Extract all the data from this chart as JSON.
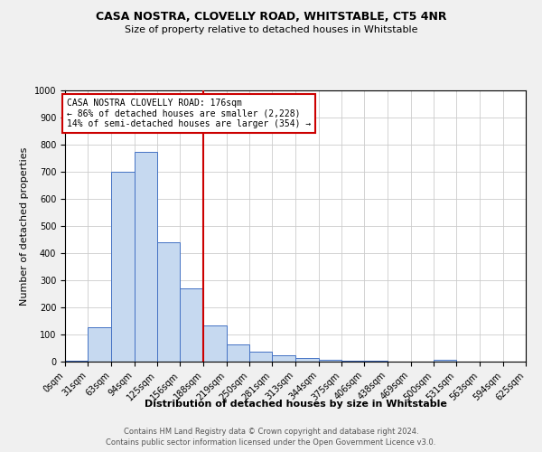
{
  "title": "CASA NOSTRA, CLOVELLY ROAD, WHITSTABLE, CT5 4NR",
  "subtitle": "Size of property relative to detached houses in Whitstable",
  "xlabel": "Distribution of detached houses by size in Whitstable",
  "ylabel": "Number of detached properties",
  "footnote1": "Contains HM Land Registry data © Crown copyright and database right 2024.",
  "footnote2": "Contains public sector information licensed under the Open Government Licence v3.0.",
  "annotation_line1": "CASA NOSTRA CLOVELLY ROAD: 176sqm",
  "annotation_line2": "← 86% of detached houses are smaller (2,228)",
  "annotation_line3": "14% of semi-detached houses are larger (354) →",
  "bar_color": "#c6d9f0",
  "bar_edge_color": "#4472c4",
  "ref_line_color": "#cc0000",
  "categories": [
    "0sqm",
    "31sqm",
    "63sqm",
    "94sqm",
    "125sqm",
    "156sqm",
    "188sqm",
    "219sqm",
    "250sqm",
    "281sqm",
    "313sqm",
    "344sqm",
    "375sqm",
    "406sqm",
    "438sqm",
    "469sqm",
    "500sqm",
    "531sqm",
    "563sqm",
    "594sqm",
    "625sqm"
  ],
  "bin_edges": [
    0,
    31,
    63,
    94,
    125,
    156,
    188,
    219,
    250,
    281,
    313,
    344,
    375,
    406,
    438,
    469,
    500,
    531,
    563,
    594,
    625
  ],
  "values": [
    5,
    128,
    700,
    775,
    440,
    270,
    135,
    65,
    38,
    25,
    12,
    8,
    5,
    3,
    0,
    0,
    7,
    0,
    0,
    0
  ],
  "ylim": [
    0,
    1000
  ],
  "yticks": [
    0,
    100,
    200,
    300,
    400,
    500,
    600,
    700,
    800,
    900,
    1000
  ],
  "bg_color": "#f0f0f0",
  "plot_bg_color": "#ffffff",
  "title_fontsize": 9,
  "subtitle_fontsize": 8,
  "ylabel_fontsize": 8,
  "xlabel_fontsize": 8,
  "tick_fontsize": 7,
  "footnote_fontsize": 6
}
